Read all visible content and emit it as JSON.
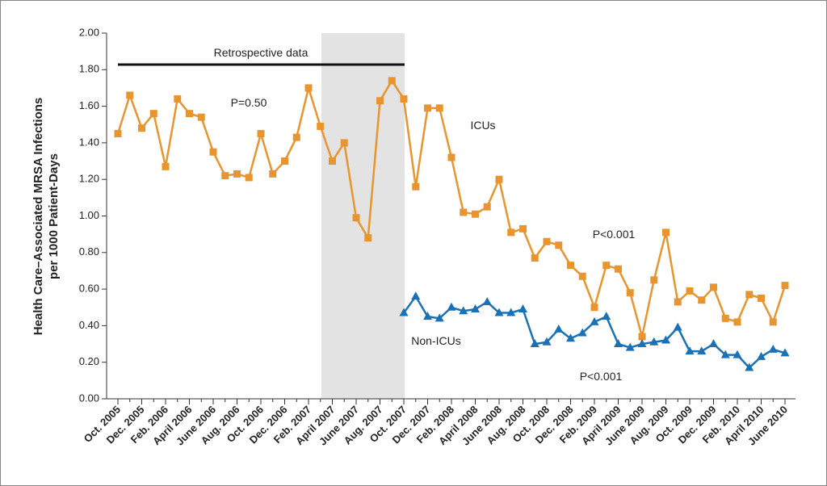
{
  "chart_data": {
    "type": "line",
    "y_label": [
      "Health Care–Associated MRSA Infections",
      "per 1000 Patient-Days"
    ],
    "annotations": [
      "Retrospective data",
      "P=0.50",
      "ICUs",
      "P<0.001",
      "Non-ICUs",
      "P<0.001"
    ],
    "categories": [
      "Oct. 2005",
      null,
      "Dec. 2005",
      null,
      "Feb. 2006",
      null,
      "April 2006",
      null,
      "June 2006",
      null,
      "Aug. 2006",
      null,
      "Oct. 2006",
      null,
      "Dec. 2006",
      null,
      "Feb. 2007",
      null,
      "April 2007",
      null,
      "June 2007",
      null,
      "Aug. 2007",
      null,
      "Oct. 2007",
      null,
      "Dec. 2007",
      null,
      "Feb. 2008",
      null,
      "April 2008",
      null,
      "June 2008",
      null,
      "Aug. 2008",
      null,
      "Oct. 2008",
      null,
      "Dec. 2008",
      null,
      "Feb. 2009",
      null,
      "April 2009",
      null,
      "June 2009",
      null,
      "Aug. 2009",
      null,
      "Oct. 2009",
      null,
      "Dec. 2009",
      null,
      "Feb. 2010",
      null,
      "April 2010",
      null,
      "June 2010"
    ],
    "series": [
      {
        "name": "ICUs",
        "color": "#e8952f",
        "marker": "square",
        "values": [
          1.45,
          1.66,
          1.48,
          1.56,
          1.27,
          1.64,
          1.56,
          1.54,
          1.35,
          1.22,
          1.23,
          1.21,
          1.45,
          1.23,
          1.3,
          1.43,
          1.7,
          1.49,
          1.3,
          1.4,
          0.99,
          0.88,
          1.63,
          1.74,
          1.64,
          1.16,
          1.59,
          1.59,
          1.32,
          1.02,
          1.01,
          1.05,
          1.2,
          0.91,
          0.93,
          0.77,
          0.86,
          0.84,
          0.73,
          0.67,
          0.5,
          0.73,
          0.71,
          0.58,
          0.34,
          0.65,
          0.91,
          0.53,
          0.59,
          0.54,
          0.61,
          0.44,
          0.42,
          0.57,
          0.55,
          0.42,
          0.62
        ]
      },
      {
        "name": "Non-ICUs",
        "color": "#1b71b5",
        "marker": "triangle",
        "values": [
          null,
          null,
          null,
          null,
          null,
          null,
          null,
          null,
          null,
          null,
          null,
          null,
          null,
          null,
          null,
          null,
          null,
          null,
          null,
          null,
          null,
          null,
          null,
          null,
          0.47,
          0.56,
          0.45,
          0.44,
          0.5,
          0.48,
          0.49,
          0.53,
          0.47,
          0.47,
          0.49,
          0.3,
          0.31,
          0.38,
          0.33,
          0.36,
          0.42,
          0.45,
          0.3,
          0.28,
          0.3,
          0.31,
          0.32,
          0.39,
          0.26,
          0.26,
          0.3,
          0.24,
          0.24,
          0.17,
          0.23,
          0.27,
          0.25
        ]
      }
    ],
    "ylim": [
      0,
      2
    ],
    "yticks": [
      {
        "value": 0,
        "label": "0.00"
      },
      {
        "value": 0.2,
        "label": "0.20"
      },
      {
        "value": 0.4,
        "label": "0.40"
      },
      {
        "value": 0.6,
        "label": "0.60"
      },
      {
        "value": 0.8,
        "label": "0.80"
      },
      {
        "value": 1,
        "label": "1.00"
      },
      {
        "value": 1.2,
        "label": "1.20"
      },
      {
        "value": 1.4,
        "label": "1.40"
      },
      {
        "value": 1.6,
        "label": "1.60"
      },
      {
        "value": 1.8,
        "label": "1.80"
      },
      {
        "value": 2,
        "label": "2.00"
      }
    ]
  }
}
